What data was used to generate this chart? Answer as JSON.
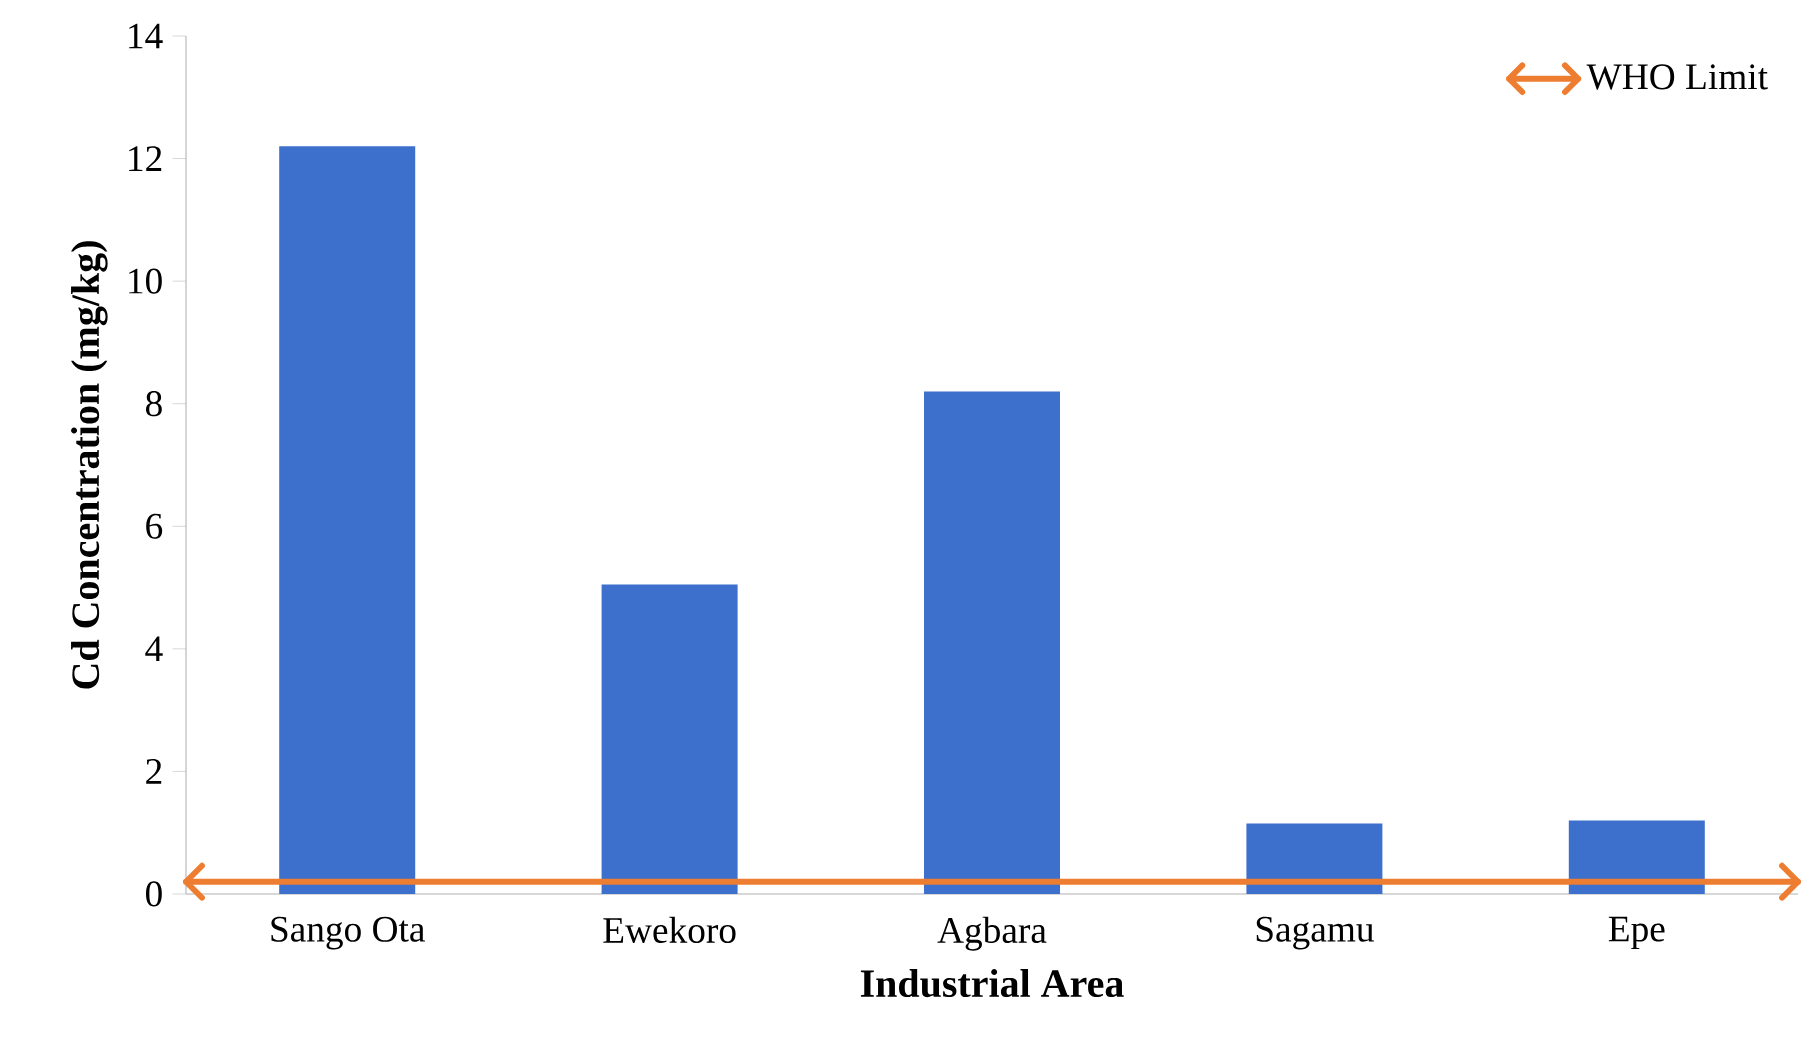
{
  "chart_data": {
    "type": "bar",
    "xlabel": "Industrial Area",
    "ylabel": "Cd Concentration (mg/kg)",
    "categories": [
      "Sango Ota",
      "Ewekoro",
      "Agbara",
      "Sagamu",
      "Epe"
    ],
    "values": [
      12.2,
      5.05,
      8.2,
      1.15,
      1.2
    ],
    "color": "#3d6fcc",
    "ylim": [
      0,
      14
    ],
    "yticks": [
      0,
      2,
      4,
      6,
      8,
      10,
      12,
      14
    ],
    "grid": false,
    "legend": "top right",
    "ref_lines": [
      {
        "axis": "y",
        "value": 0.2,
        "label": "WHO Limit",
        "color": "#ed7d31"
      }
    ]
  }
}
